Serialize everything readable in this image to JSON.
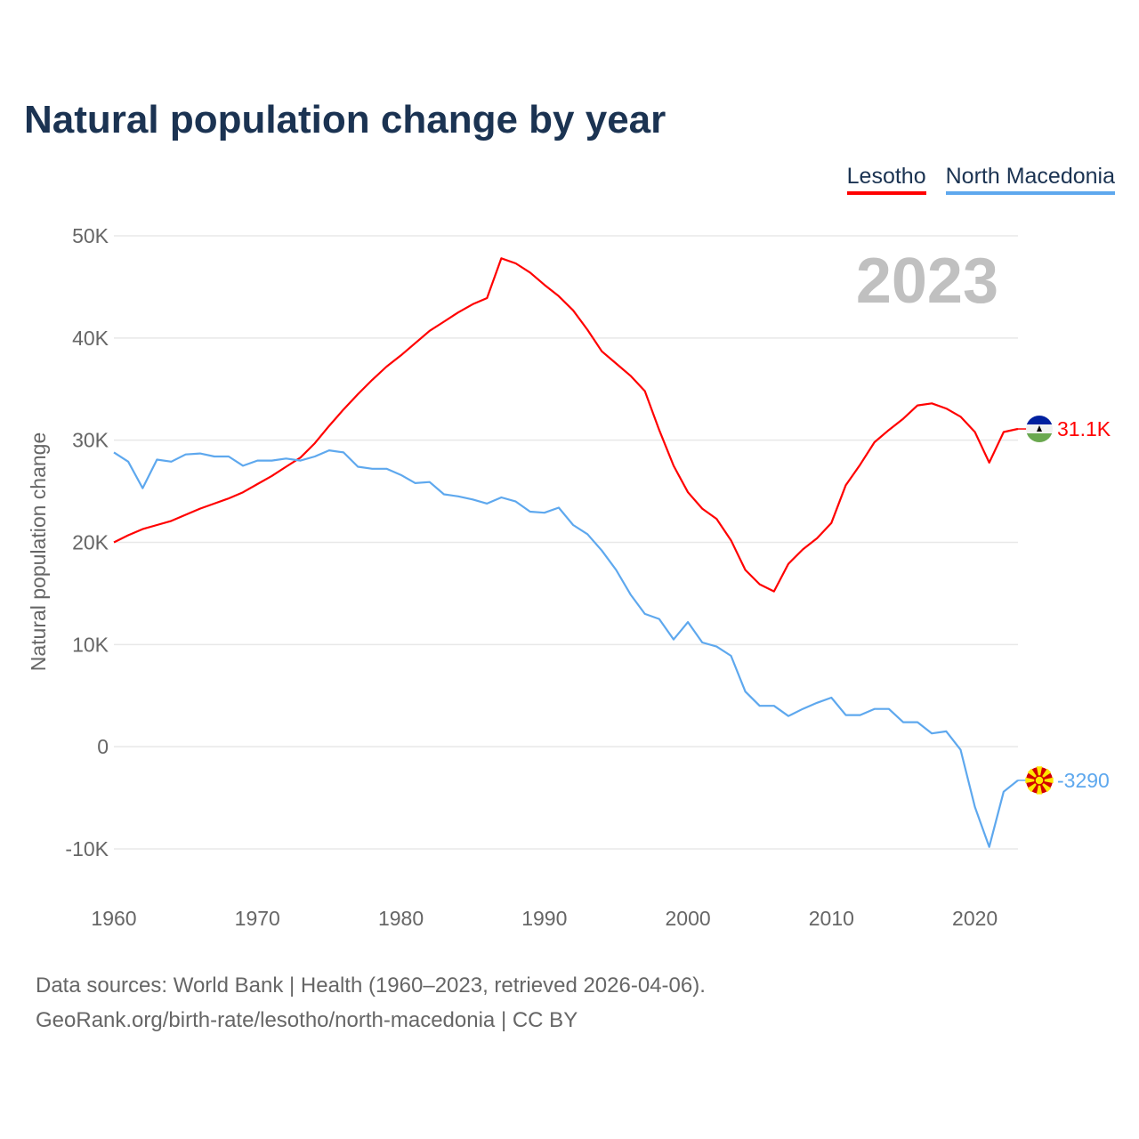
{
  "title": "Natural population change by year",
  "footer": {
    "line1": "Data sources: World Bank | Health (1960–2023, retrieved 2026-04-06).",
    "line2": "GeoRank.org/birth-rate/lesotho/north-macedonia | CC BY"
  },
  "chart_data": {
    "type": "line",
    "title": "Natural population change by year",
    "xlabel": "",
    "ylabel": "Natural population change",
    "year_label": "2023",
    "xlim": [
      1960,
      2023
    ],
    "ylim": [
      -10000,
      50000
    ],
    "xticks": [
      1960,
      1970,
      1980,
      1990,
      2000,
      2010,
      2020
    ],
    "xtick_labels": [
      "1960",
      "1970",
      "1980",
      "1990",
      "2000",
      "2010",
      "2020"
    ],
    "yticks": [
      -10000,
      0,
      10000,
      20000,
      30000,
      40000,
      50000
    ],
    "ytick_labels": [
      "-10K",
      "0",
      "10K",
      "20K",
      "30K",
      "40K",
      "50K"
    ],
    "grid": true,
    "legend_position": "top-right",
    "x": [
      1960,
      1961,
      1962,
      1963,
      1964,
      1965,
      1966,
      1967,
      1968,
      1969,
      1970,
      1971,
      1972,
      1973,
      1974,
      1975,
      1976,
      1977,
      1978,
      1979,
      1980,
      1981,
      1982,
      1983,
      1984,
      1985,
      1986,
      1987,
      1988,
      1989,
      1990,
      1991,
      1992,
      1993,
      1994,
      1995,
      1996,
      1997,
      1998,
      1999,
      2000,
      2001,
      2002,
      2003,
      2004,
      2005,
      2006,
      2007,
      2008,
      2009,
      2010,
      2011,
      2012,
      2013,
      2014,
      2015,
      2016,
      2017,
      2018,
      2019,
      2020,
      2021,
      2022,
      2023
    ],
    "series": [
      {
        "name": "Lesotho",
        "color": "#ff0000",
        "end_label": "31.1K",
        "values": [
          20000,
          20700,
          21300,
          21700,
          22100,
          22700,
          23300,
          23800,
          24300,
          24900,
          25700,
          26500,
          27400,
          28300,
          29700,
          31400,
          33000,
          34500,
          35900,
          37200,
          38300,
          39500,
          40700,
          41600,
          42500,
          43300,
          43900,
          47800,
          47300,
          46400,
          45200,
          44100,
          42700,
          40800,
          38700,
          37500,
          36300,
          34800,
          31000,
          27500,
          24900,
          23300,
          22300,
          20200,
          17300,
          15900,
          15200,
          17900,
          19300,
          20400,
          21900,
          25600,
          27600,
          29800,
          31000,
          32100,
          33400,
          33600,
          33100,
          32300,
          30800,
          27800,
          30800,
          31100
        ]
      },
      {
        "name": "North Macedonia",
        "color": "#5ea8ee",
        "end_label": "-3290",
        "values": [
          28800,
          27900,
          25300,
          28100,
          27900,
          28600,
          28700,
          28400,
          28400,
          27500,
          28000,
          28000,
          28200,
          28000,
          28400,
          29000,
          28800,
          27400,
          27200,
          27200,
          26600,
          25800,
          25900,
          24700,
          24500,
          24200,
          23800,
          24400,
          24000,
          23000,
          22900,
          23400,
          21700,
          20800,
          19200,
          17300,
          14900,
          13000,
          12500,
          10500,
          12200,
          10200,
          9800,
          8900,
          5400,
          4000,
          4000,
          3000,
          3700,
          4300,
          4800,
          3100,
          3100,
          3700,
          3700,
          2400,
          2400,
          1300,
          1500,
          -300,
          -5900,
          -9800,
          -4400,
          -3290
        ]
      }
    ]
  }
}
